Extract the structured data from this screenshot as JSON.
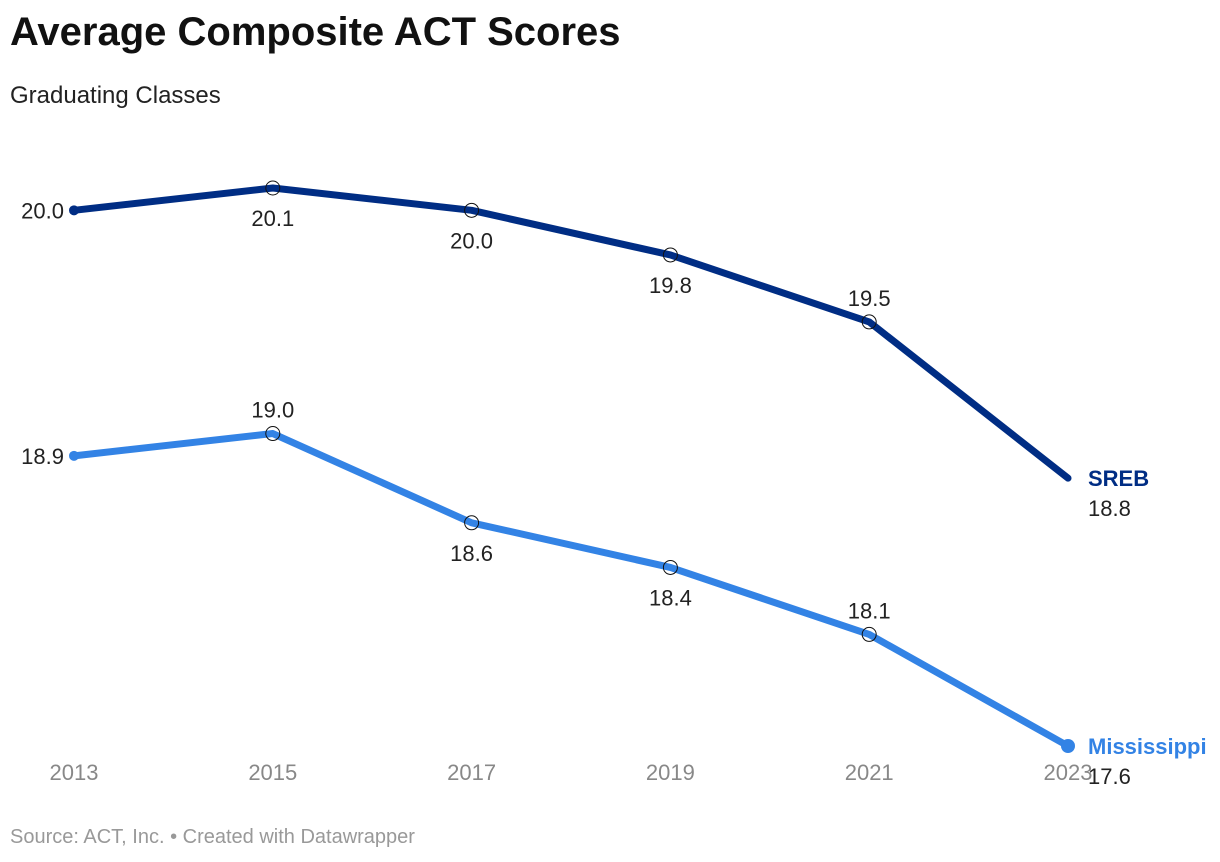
{
  "header": {
    "title": "Average Composite ACT Scores",
    "subtitle": "Graduating Classes"
  },
  "footer": {
    "source": "Source: ACT, Inc. • Created with Datawrapper"
  },
  "chart_data": {
    "type": "line",
    "title": "Average Composite ACT Scores",
    "subtitle": "Graduating Classes",
    "xlabel": "",
    "ylabel": "",
    "x": [
      "2013",
      "2015",
      "2017",
      "2019",
      "2021",
      "2023"
    ],
    "ylim": [
      17.6,
      20.1
    ],
    "grid": false,
    "legend": "direct labels at line ends",
    "series": [
      {
        "name": "SREB",
        "color": "#002d84",
        "values": [
          20.0,
          20.1,
          20.0,
          19.8,
          19.5,
          18.8
        ],
        "labels": [
          "20.0",
          "20.1",
          "20.0",
          "19.8",
          "19.5",
          "18.8"
        ]
      },
      {
        "name": "Mississippi",
        "color": "#3383e5",
        "values": [
          18.9,
          19.0,
          18.6,
          18.4,
          18.1,
          17.6
        ],
        "labels": [
          "18.9",
          "19.0",
          "18.6",
          "18.4",
          "18.1",
          "17.6"
        ]
      }
    ]
  }
}
